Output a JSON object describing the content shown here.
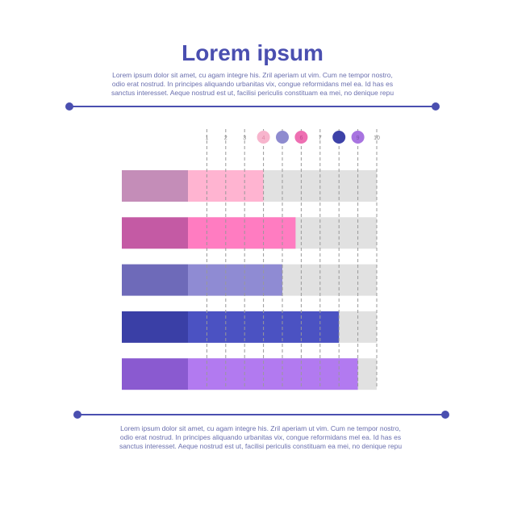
{
  "header": {
    "title": "Lorem ipsum",
    "paragraph_lines": [
      "Lorem ipsum dolor sit amet, cu agam integre his. Zril aperiam ut vim. Cum ne tempor nostro,",
      "odio erat nostrud. In principes aliquando urbanitas vix, congue reformidans mel ea. Id has es",
      "sanctus interesset. Aeque nostrud est ut, facilisi periculis constituam ea mei, no denique repu"
    ]
  },
  "footer": {
    "paragraph_lines": [
      "Lorem ipsum dolor sit amet, cu agam integre his. Zril aperiam ut vim. Cum ne tempor nostro,",
      "odio erat nostrud. In principes aliquando urbanitas vix, congue reformidans mel ea. Id has es",
      "sanctus interesset. Aeque nostrud est ut, facilisi periculis constituam ea mei, no denique repu"
    ]
  },
  "colors": {
    "accent": "#4a4fb0",
    "text": "#6a6fae",
    "track": "#e1e1e1",
    "gridline": "#999999"
  },
  "chart_data": {
    "type": "bar",
    "orientation": "horizontal",
    "title": "",
    "xlabel": "",
    "ylabel": "",
    "xlim": [
      0,
      10
    ],
    "x_ticks": [
      1,
      2,
      3,
      4,
      5,
      6,
      7,
      8,
      9,
      10
    ],
    "highlighted_ticks": [
      {
        "tick": 4,
        "color": "#f7b5cd",
        "label_color": "#e08aa8"
      },
      {
        "tick": 5,
        "color": "#8e8bcf",
        "label_color": "#8e8bcf"
      },
      {
        "tick": 6,
        "color": "#ee6fb2",
        "label_color": "#c24490"
      },
      {
        "tick": 8,
        "color": "#3d42a8",
        "label_color": "#3d42a8"
      },
      {
        "tick": 9,
        "color": "#a874e0",
        "label_color": "#7e52b0"
      }
    ],
    "grid": true,
    "legend": "none",
    "bars": [
      {
        "value": 4.0,
        "color": "#ffb4d1",
        "label_color": "#c48db8"
      },
      {
        "value": 5.7,
        "color": "#ff7cc1",
        "label_color": "#c45aa4"
      },
      {
        "value": 5.0,
        "color": "#8f8bd3",
        "label_color": "#6e6ab9"
      },
      {
        "value": 8.0,
        "color": "#4b52c2",
        "label_color": "#3a3fa6"
      },
      {
        "value": 9.0,
        "color": "#b27af0",
        "label_color": "#8a5ad0"
      }
    ]
  }
}
